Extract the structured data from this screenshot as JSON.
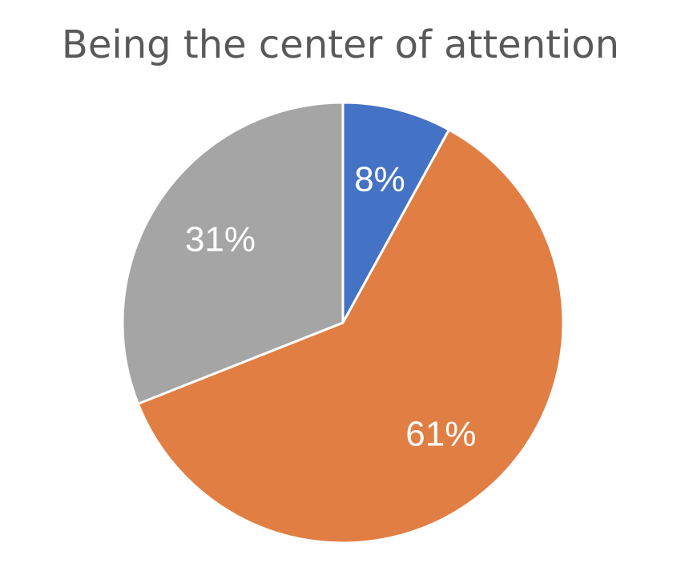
{
  "chart_data": {
    "type": "pie",
    "title": "Being the center of attention",
    "slices": [
      {
        "value": 8,
        "label": "8%",
        "color": "#4472C4"
      },
      {
        "value": 61,
        "label": "61%",
        "color": "#E07E43"
      },
      {
        "value": 31,
        "label": "31%",
        "color": "#A5A5A5"
      }
    ],
    "start_angle_deg": 0,
    "direction": "clockwise",
    "legend": "none"
  }
}
